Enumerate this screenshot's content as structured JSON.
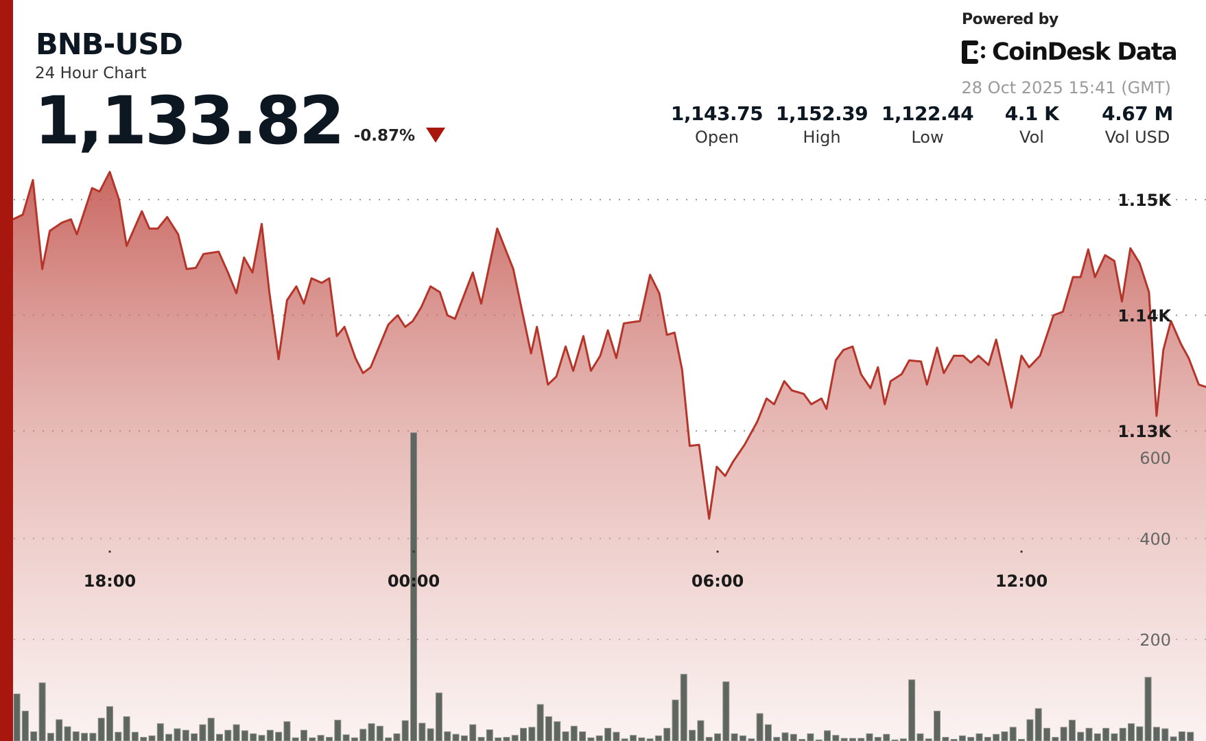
{
  "header": {
    "pair": "BNB-USD",
    "subtitle": "24 Hour Chart",
    "price": "1,133.82",
    "change": "-0.87%",
    "change_direction": "down",
    "powered_by": "Powered by",
    "brand": "CoinDesk Data",
    "timestamp": "28 Oct 2025 15:41 (GMT)"
  },
  "stats": [
    {
      "value": "1,143.75",
      "label": "Open"
    },
    {
      "value": "1,152.39",
      "label": "High"
    },
    {
      "value": "1,122.44",
      "label": "Low"
    },
    {
      "value": "4.1 K",
      "label": "Vol"
    },
    {
      "value": "4.67 M",
      "label": "Vol USD"
    }
  ],
  "colors": {
    "accent": "#a8170e",
    "line": "#b5352a",
    "fill": "#c0504d",
    "volume": "#5f655f"
  },
  "chart_data": {
    "type": "area",
    "x_ticks": [
      "18:00",
      "00:00",
      "06:00",
      "12:00"
    ],
    "price_ticks": [
      "1.15K",
      "1.14K",
      "1.13K"
    ],
    "price_tick_values": [
      1150,
      1140,
      1130
    ],
    "volume_ticks": [
      "600",
      "400",
      "200"
    ],
    "volume_tick_values": [
      600,
      400,
      200
    ],
    "grid": "dotted horizontal",
    "price": {
      "x": [
        "16:06",
        "16:17",
        "16:29",
        "16:40",
        "16:49",
        "17:03",
        "17:14",
        "17:21",
        "17:39",
        "17:48",
        "18:00",
        "18:11",
        "18:20",
        "18:38",
        "18:47",
        "18:57",
        "19:08",
        "19:21",
        "19:31",
        "19:42",
        "19:51",
        "20:09",
        "20:20",
        "20:30",
        "20:39",
        "20:49",
        "21:00",
        "21:09",
        "21:20",
        "21:30",
        "21:41",
        "21:50",
        "21:59",
        "22:11",
        "22:20",
        "22:29",
        "22:38",
        "22:51",
        "23:00",
        "23:09",
        "23:30",
        "23:41",
        "23:50",
        "23:59",
        "00:09",
        "00:20",
        "00:31",
        "00:40",
        "00:49",
        "01:10",
        "01:20",
        "01:39",
        "01:58",
        "02:19",
        "02:26",
        "02:39",
        "02:49",
        "03:00",
        "03:09",
        "03:21",
        "03:30",
        "03:41",
        "03:50",
        "04:00",
        "04:09",
        "04:28",
        "04:40",
        "04:51",
        "05:00",
        "05:09",
        "05:18",
        "05:27",
        "05:38",
        "05:50",
        "05:59",
        "06:09",
        "06:18",
        "06:32",
        "06:47",
        "06:58",
        "07:07",
        "07:19",
        "07:28",
        "07:42",
        "07:51",
        "08:03",
        "08:09",
        "08:20",
        "08:29",
        "08:40",
        "08:50",
        "09:01",
        "09:10",
        "09:18",
        "09:25",
        "09:38",
        "09:47",
        "10:01",
        "10:08",
        "10:20",
        "10:28",
        "10:40",
        "10:51",
        "11:00",
        "11:09",
        "11:21",
        "11:30",
        "11:39",
        "11:48",
        "12:00",
        "12:09",
        "12:22",
        "12:38",
        "12:49",
        "13:01",
        "13:10",
        "13:19",
        "13:27",
        "13:39",
        "13:50",
        "13:59",
        "14:09",
        "14:20",
        "14:31",
        "14:40",
        "14:48",
        "14:57",
        "15:09",
        "15:18",
        "15:30",
        "15:39"
      ],
      "y": [
        1148.3,
        1148.7,
        1151.7,
        1144.0,
        1147.3,
        1148.0,
        1148.3,
        1147.0,
        1151.0,
        1150.7,
        1152.4,
        1150.0,
        1146.0,
        1149.0,
        1147.5,
        1147.5,
        1148.5,
        1147.0,
        1144.0,
        1144.1,
        1145.3,
        1145.5,
        1143.7,
        1141.9,
        1145.0,
        1143.7,
        1147.9,
        1142.0,
        1136.2,
        1141.3,
        1142.5,
        1141.0,
        1143.2,
        1142.8,
        1143.2,
        1138.2,
        1139.0,
        1136.3,
        1135.0,
        1135.5,
        1139.2,
        1140.0,
        1139.0,
        1139.5,
        1140.7,
        1142.5,
        1142.0,
        1140.0,
        1139.7,
        1143.7,
        1141.0,
        1147.5,
        1144.0,
        1136.7,
        1139.0,
        1134.0,
        1134.7,
        1137.3,
        1135.2,
        1138.2,
        1135.2,
        1136.5,
        1138.7,
        1136.3,
        1139.3,
        1139.5,
        1143.5,
        1141.9,
        1138.3,
        1138.5,
        1135.3,
        1128.7,
        1128.8,
        1122.4,
        1126.9,
        1126.1,
        1127.3,
        1128.8,
        1130.8,
        1132.8,
        1132.3,
        1134.3,
        1133.5,
        1133.2,
        1132.3,
        1132.8,
        1131.9,
        1136.1,
        1137.0,
        1137.3,
        1134.9,
        1133.7,
        1135.5,
        1132.3,
        1134.3,
        1134.9,
        1136.1,
        1136.0,
        1134.0,
        1137.2,
        1135.0,
        1136.5,
        1136.5,
        1135.9,
        1136.5,
        1135.7,
        1137.9,
        1135.0,
        1132.0,
        1136.5,
        1135.5,
        1136.5,
        1140.0,
        1140.3,
        1143.3,
        1143.3,
        1145.7,
        1143.3,
        1145.2,
        1144.7,
        1141.2,
        1145.8,
        1144.5,
        1142.0,
        1131.3,
        1137.0,
        1139.5,
        1137.5,
        1136.3,
        1134.0,
        1133.8
      ]
    },
    "volume": {
      "x": [
        "16:00",
        "16:10",
        "16:20",
        "16:30",
        "16:40",
        "16:50",
        "17:00",
        "17:10",
        "17:20",
        "17:30",
        "17:40",
        "17:50",
        "18:00",
        "18:10",
        "18:20",
        "18:30",
        "18:40",
        "18:50",
        "19:00",
        "19:10",
        "19:20",
        "19:30",
        "19:40",
        "19:50",
        "20:00",
        "20:10",
        "20:20",
        "20:30",
        "20:40",
        "20:50",
        "21:00",
        "21:10",
        "21:20",
        "21:30",
        "21:40",
        "21:50",
        "22:00",
        "22:10",
        "22:20",
        "22:30",
        "22:40",
        "22:50",
        "23:00",
        "23:10",
        "23:20",
        "23:30",
        "23:40",
        "23:50",
        "00:00",
        "00:10",
        "00:20",
        "00:30",
        "00:40",
        "00:50",
        "01:00",
        "01:10",
        "01:20",
        "01:30",
        "01:40",
        "01:50",
        "02:00",
        "02:10",
        "02:20",
        "02:30",
        "02:40",
        "02:50",
        "03:00",
        "03:10",
        "03:20",
        "03:30",
        "03:40",
        "03:50",
        "04:00",
        "04:10",
        "04:20",
        "04:30",
        "04:40",
        "04:50",
        "05:00",
        "05:10",
        "05:20",
        "05:30",
        "05:40",
        "05:50",
        "06:00",
        "06:10",
        "06:20",
        "06:30",
        "06:40",
        "06:50",
        "07:00",
        "07:10",
        "07:20",
        "07:30",
        "07:40",
        "07:50",
        "08:00",
        "08:10",
        "08:20",
        "08:30",
        "08:40",
        "08:50",
        "09:00",
        "09:10",
        "09:20",
        "09:30",
        "09:40",
        "09:50",
        "10:00",
        "10:10",
        "10:20",
        "10:30",
        "10:40",
        "10:50",
        "11:00",
        "11:10",
        "11:20",
        "11:30",
        "11:40",
        "11:50",
        "12:00",
        "12:10",
        "12:20",
        "12:30",
        "12:40",
        "12:50",
        "13:00",
        "13:10",
        "13:20",
        "13:30",
        "13:40",
        "13:50",
        "14:00",
        "14:10",
        "14:20",
        "14:30",
        "14:40",
        "14:50",
        "15:00",
        "15:10",
        "15:20"
      ],
      "y": [
        48,
        92,
        58,
        17,
        114,
        14,
        41,
        27,
        17,
        14,
        14,
        44,
        67,
        16,
        47,
        16,
        6,
        9,
        33,
        12,
        23,
        20,
        13,
        31,
        44,
        12,
        20,
        31,
        19,
        13,
        10,
        20,
        16,
        37,
        5,
        20,
        5,
        10,
        6,
        40,
        11,
        5,
        22,
        33,
        28,
        5,
        13,
        39,
        610,
        34,
        23,
        94,
        17,
        12,
        9,
        31,
        6,
        21,
        5,
        6,
        10,
        24,
        26,
        71,
        47,
        37,
        17,
        28,
        17,
        5,
        9,
        24,
        16,
        3,
        10,
        5,
        3,
        9,
        24,
        80,
        131,
        20,
        39,
        6,
        13,
        116,
        13,
        9,
        3,
        53,
        31,
        6,
        15,
        12,
        2,
        13,
        1,
        19,
        10,
        4,
        4,
        4,
        13,
        6,
        12,
        1,
        3,
        120,
        13,
        3,
        58,
        6,
        2,
        9,
        6,
        13,
        6,
        12,
        17,
        26,
        2,
        41,
        63,
        24,
        6,
        26,
        40,
        16,
        24,
        13,
        24,
        13,
        24,
        33,
        27,
        125,
        26,
        23,
        7,
        17,
        16
      ]
    }
  }
}
